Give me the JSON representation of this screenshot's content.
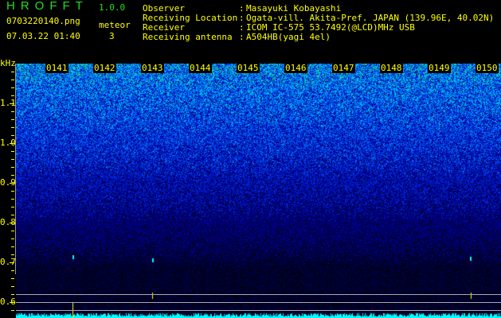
{
  "app": {
    "title": "HROFFT",
    "version": "1.0.0"
  },
  "file": {
    "name": "0703220140.png",
    "datetime": "07.03.22 01:40"
  },
  "meteor": {
    "label": "meteor",
    "count": "3"
  },
  "info": [
    {
      "label": "Observer",
      "value": "Masayuki Kobayashi"
    },
    {
      "label": "Receiving Location",
      "value": "Ogata-vill. Akita-Pref. JAPAN (139.96E, 40.02N)"
    },
    {
      "label": "Receiver",
      "value": "ICOM IC-575 53.7492(@LCD)MHz USB"
    },
    {
      "label": "Receiving antenna",
      "value": "A504HB(yagi 4el)"
    }
  ],
  "spectrogram": {
    "y_unit": "kHz",
    "y_ticks": [
      "1.1",
      "1.0",
      "0.9",
      "0.8",
      "0.7",
      "0.6"
    ],
    "time_labels": [
      "0141",
      "0142",
      "0143",
      "0144",
      "0145",
      "0146",
      "0147",
      "0148",
      "0149",
      "0150"
    ],
    "colors": {
      "text": "#ffff00",
      "title": "#22dd22",
      "histogram": "#00ffff",
      "marker": "#ffff00"
    }
  }
}
